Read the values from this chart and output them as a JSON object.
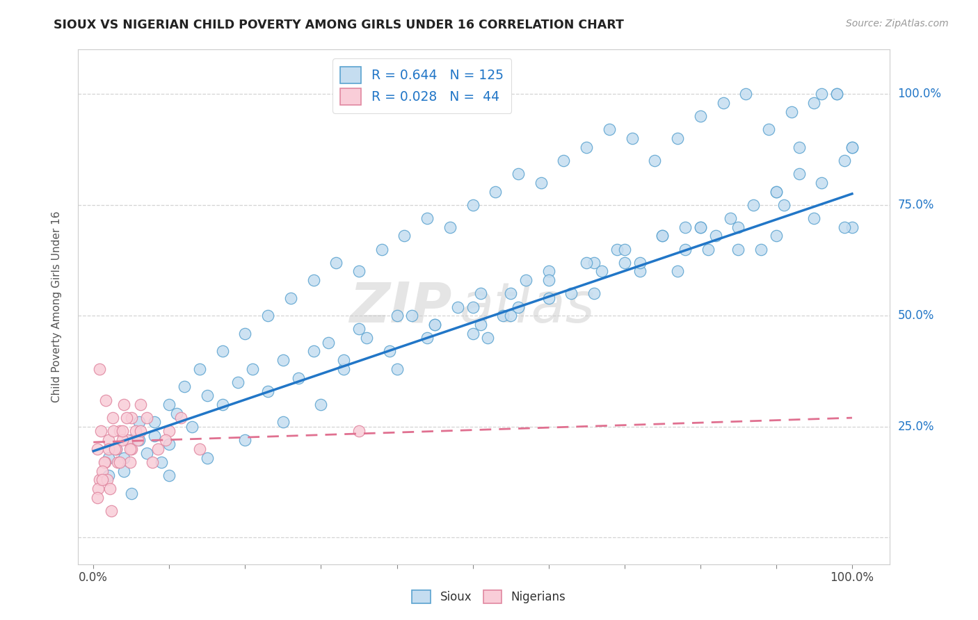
{
  "title": "SIOUX VS NIGERIAN CHILD POVERTY AMONG GIRLS UNDER 16 CORRELATION CHART",
  "source": "Source: ZipAtlas.com",
  "ylabel": "Child Poverty Among Girls Under 16",
  "xlim": [
    -0.02,
    1.05
  ],
  "ylim": [
    -0.06,
    1.1
  ],
  "xtick_positions": [
    0.0,
    0.1,
    0.2,
    0.3,
    0.4,
    0.5,
    0.6,
    0.7,
    0.8,
    0.9,
    1.0
  ],
  "xticklabels": [
    "0.0%",
    "",
    "",
    "",
    "",
    "",
    "",
    "",
    "",
    "",
    "100.0%"
  ],
  "ytick_positions": [
    0.0,
    0.25,
    0.5,
    0.75,
    1.0
  ],
  "yticklabels": [
    "",
    "25.0%",
    "50.0%",
    "75.0%",
    "100.0%"
  ],
  "sioux_color": "#c5ddf0",
  "sioux_edge_color": "#5ba3d0",
  "nigerian_color": "#f9cdd8",
  "nigerian_edge_color": "#e087a0",
  "sioux_line_color": "#2176c7",
  "nigerian_line_color": "#e07090",
  "sioux_R": 0.644,
  "sioux_N": 125,
  "nigerian_R": 0.028,
  "nigerian_N": 44,
  "background_color": "#ffffff",
  "grid_color": "#d0d0d0",
  "title_color": "#222222",
  "tick_color_blue": "#2176c7",
  "sioux_line_y0": 0.195,
  "sioux_line_y1": 0.775,
  "nigerian_line_y0": 0.215,
  "nigerian_line_y1": 0.27,
  "sioux_x": [
    0.02,
    0.03,
    0.04,
    0.05,
    0.06,
    0.07,
    0.08,
    0.09,
    0.1,
    0.11,
    0.13,
    0.15,
    0.17,
    0.19,
    0.21,
    0.23,
    0.25,
    0.27,
    0.29,
    0.31,
    0.33,
    0.36,
    0.39,
    0.42,
    0.45,
    0.48,
    0.51,
    0.54,
    0.57,
    0.6,
    0.63,
    0.66,
    0.69,
    0.72,
    0.75,
    0.78,
    0.81,
    0.84,
    0.87,
    0.9,
    0.93,
    0.96,
    0.99,
    1.0,
    0.02,
    0.04,
    0.06,
    0.08,
    0.1,
    0.12,
    0.14,
    0.17,
    0.2,
    0.23,
    0.26,
    0.29,
    0.32,
    0.35,
    0.38,
    0.41,
    0.44,
    0.47,
    0.5,
    0.53,
    0.56,
    0.59,
    0.62,
    0.65,
    0.68,
    0.71,
    0.74,
    0.77,
    0.8,
    0.83,
    0.86,
    0.89,
    0.92,
    0.95,
    0.98,
    1.0,
    0.35,
    0.4,
    0.45,
    0.5,
    0.55,
    0.6,
    0.65,
    0.7,
    0.75,
    0.8,
    0.85,
    0.9,
    0.95,
    1.0,
    0.05,
    0.1,
    0.15,
    0.2,
    0.25,
    0.3,
    0.4,
    0.5,
    0.6,
    0.7,
    0.8,
    0.9,
    0.44,
    0.55,
    0.66,
    0.77,
    0.88,
    0.99,
    0.33,
    0.56,
    0.78,
    0.93,
    0.96,
    0.98,
    0.51,
    0.52,
    0.67,
    0.72,
    0.82,
    0.85,
    0.91
  ],
  "sioux_y": [
    0.18,
    0.2,
    0.15,
    0.22,
    0.26,
    0.19,
    0.23,
    0.17,
    0.21,
    0.28,
    0.25,
    0.32,
    0.3,
    0.35,
    0.38,
    0.33,
    0.4,
    0.36,
    0.42,
    0.44,
    0.38,
    0.45,
    0.42,
    0.5,
    0.48,
    0.52,
    0.55,
    0.5,
    0.58,
    0.6,
    0.55,
    0.62,
    0.65,
    0.6,
    0.68,
    0.7,
    0.65,
    0.72,
    0.75,
    0.78,
    0.82,
    0.8,
    0.85,
    0.88,
    0.14,
    0.18,
    0.22,
    0.26,
    0.3,
    0.34,
    0.38,
    0.42,
    0.46,
    0.5,
    0.54,
    0.58,
    0.62,
    0.6,
    0.65,
    0.68,
    0.72,
    0.7,
    0.75,
    0.78,
    0.82,
    0.8,
    0.85,
    0.88,
    0.92,
    0.9,
    0.85,
    0.9,
    0.95,
    0.98,
    1.0,
    0.92,
    0.96,
    0.98,
    1.0,
    0.88,
    0.47,
    0.5,
    0.48,
    0.52,
    0.55,
    0.58,
    0.62,
    0.65,
    0.68,
    0.7,
    0.65,
    0.68,
    0.72,
    0.7,
    0.1,
    0.14,
    0.18,
    0.22,
    0.26,
    0.3,
    0.38,
    0.46,
    0.54,
    0.62,
    0.7,
    0.78,
    0.45,
    0.5,
    0.55,
    0.6,
    0.65,
    0.7,
    0.4,
    0.52,
    0.65,
    0.88,
    1.0,
    1.0,
    0.48,
    0.45,
    0.6,
    0.62,
    0.68,
    0.7,
    0.75
  ],
  "nigerian_x": [
    0.005,
    0.01,
    0.015,
    0.02,
    0.025,
    0.03,
    0.035,
    0.04,
    0.045,
    0.05,
    0.008,
    0.014,
    0.02,
    0.026,
    0.032,
    0.038,
    0.044,
    0.05,
    0.056,
    0.062,
    0.006,
    0.012,
    0.018,
    0.028,
    0.038,
    0.048,
    0.058,
    0.07,
    0.085,
    0.1,
    0.005,
    0.012,
    0.022,
    0.035,
    0.048,
    0.062,
    0.078,
    0.095,
    0.115,
    0.14,
    0.008,
    0.016,
    0.024,
    0.35
  ],
  "nigerian_y": [
    0.2,
    0.24,
    0.17,
    0.22,
    0.27,
    0.2,
    0.24,
    0.3,
    0.22,
    0.27,
    0.13,
    0.17,
    0.2,
    0.24,
    0.17,
    0.22,
    0.27,
    0.2,
    0.24,
    0.3,
    0.11,
    0.15,
    0.13,
    0.2,
    0.24,
    0.17,
    0.22,
    0.27,
    0.2,
    0.24,
    0.09,
    0.13,
    0.11,
    0.17,
    0.2,
    0.24,
    0.17,
    0.22,
    0.27,
    0.2,
    0.38,
    0.31,
    0.06,
    0.24
  ]
}
